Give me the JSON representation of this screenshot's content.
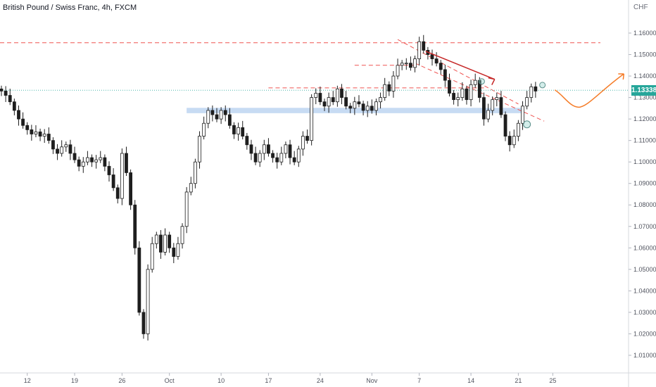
{
  "header": {
    "title": "British Pound / Swiss Franc, 4h, FXCM",
    "currency": "CHF"
  },
  "current_price": {
    "label": "1.13338",
    "value": 1.13338,
    "color": "#26a69a"
  },
  "colors": {
    "up": "#26a69a",
    "down": "#222222",
    "candle": "#1e1e1e",
    "resistance": "#ef5350",
    "support_zone": "#90b8e8",
    "trend_arrow": "#c62828",
    "projection": "#f57c28",
    "current_line": "#4db6ac",
    "circle_marker": "#80cbc4"
  },
  "chart_data": {
    "type": "candlestick",
    "title": "British Pound / Swiss Franc, 4h, FXCM",
    "ylabel": "CHF",
    "ylim": [
      1.005,
      1.168
    ],
    "y_ticks": [
      "1.16000",
      "1.15000",
      "1.14000",
      "1.13000",
      "1.12000",
      "1.11000",
      "1.10000",
      "1.09000",
      "1.08000",
      "1.07000",
      "1.06000",
      "1.05000",
      "1.04000",
      "1.03000",
      "1.02000",
      "1.01000"
    ],
    "x_ticks": [
      "12",
      "19",
      "26",
      "Oct",
      "10",
      "17",
      "24",
      "Nov",
      "7",
      "14",
      "21",
      "25"
    ],
    "x_tick_slots": [
      6,
      17,
      28,
      39,
      51,
      62,
      74,
      86,
      97,
      109,
      120,
      128
    ],
    "close_path": [
      1.133,
      1.131,
      1.128,
      1.124,
      1.12,
      1.117,
      1.115,
      1.113,
      1.114,
      1.112,
      1.113,
      1.11,
      1.106,
      1.104,
      1.107,
      1.108,
      1.104,
      1.101,
      1.098,
      1.1,
      1.102,
      1.1,
      1.101,
      1.102,
      1.098,
      1.094,
      1.088,
      1.083,
      1.104,
      1.095,
      1.08,
      1.06,
      1.03,
      1.02,
      1.05,
      1.062,
      1.066,
      1.058,
      1.066,
      1.06,
      1.056,
      1.062,
      1.07,
      1.086,
      1.09,
      1.1,
      1.112,
      1.118,
      1.124,
      1.122,
      1.12,
      1.124,
      1.122,
      1.117,
      1.113,
      1.116,
      1.112,
      1.108,
      1.104,
      1.1,
      1.104,
      1.108,
      1.104,
      1.102,
      1.1,
      1.104,
      1.108,
      1.102,
      1.1,
      1.106,
      1.112,
      1.11,
      1.13,
      1.132,
      1.128,
      1.126,
      1.13,
      1.128,
      1.134,
      1.13,
      1.126,
      1.125,
      1.128,
      1.127,
      1.124,
      1.126,
      1.124,
      1.128,
      1.13,
      1.136,
      1.133,
      1.14,
      1.145,
      1.146,
      1.146,
      1.144,
      1.148,
      1.156,
      1.152,
      1.15,
      1.148,
      1.146,
      1.143,
      1.138,
      1.132,
      1.129,
      1.13,
      1.134,
      1.129,
      1.136,
      1.138,
      1.13,
      1.12,
      1.124,
      1.129,
      1.13,
      1.122,
      1.112,
      1.108,
      1.112,
      1.118,
      1.126,
      1.13,
      1.135,
      1.133
    ],
    "resistance_high": 1.1555,
    "resistance_mid": 1.1345,
    "support_zone": [
      1.1232,
      1.1247
    ],
    "current": 1.13338
  }
}
